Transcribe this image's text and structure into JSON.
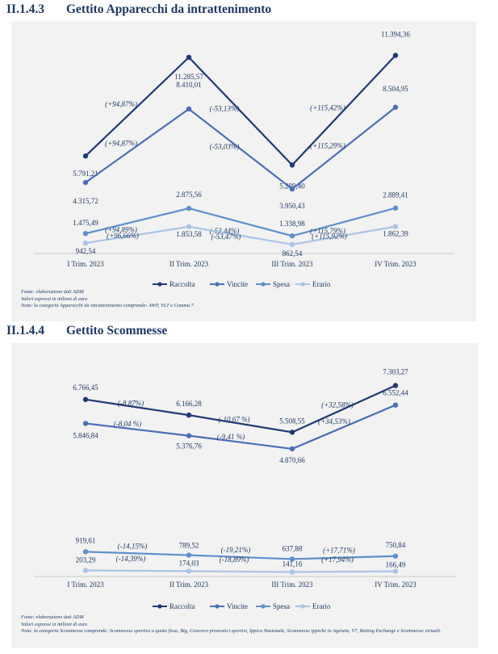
{
  "colors": {
    "raccolta": "#203a72",
    "vincite": "#4a6fb5",
    "spesa": "#5f8fcb",
    "erario": "#abc4e4",
    "text": "#1f3864",
    "panel": "#f2f2f2"
  },
  "chart_data": [
    {
      "type": "line",
      "section_number": "II.1.4.3",
      "title": "Gettito Apparecchi da intrattenimento",
      "categories": [
        "I Trim. 2023",
        "II Trim. 2023",
        "III Trim. 2023",
        "IV Trim. 2023"
      ],
      "ylim": [
        0,
        12500
      ],
      "legend_position": "bottom",
      "grid": false,
      "series": [
        {
          "name": "Raccolta",
          "color_key": "raccolta",
          "values": [
            5791.21,
            11285.57,
            5289.4,
            11394.36
          ],
          "labels": [
            "5.791,21",
            "11.285,57",
            "5.289,40",
            "11.394,36"
          ],
          "changes": [
            "(+94,87%)",
            "(-53,13%)",
            "(+115,42%)"
          ]
        },
        {
          "name": "Vincite",
          "color_key": "vincite",
          "values": [
            4315.72,
            8410.01,
            3950.43,
            8504.95
          ],
          "labels": [
            "4.315,72",
            "8.410,01",
            "3.950,43",
            "8.504,95"
          ],
          "changes": [
            "(+94,87%)",
            "(-53,03%)",
            "(+115,29%)"
          ]
        },
        {
          "name": "Spesa",
          "color_key": "spesa",
          "values": [
            1475.49,
            2875.56,
            1338.98,
            2889.41
          ],
          "labels": [
            "1.475,49",
            "2.875,56",
            "1.338,98",
            "2.889,41"
          ],
          "changes": [
            "(+94,89%)",
            "(-53,44%)",
            "(+115,79%)"
          ]
        },
        {
          "name": "Erario",
          "color_key": "erario",
          "values": [
            942.54,
            1853.58,
            862.54,
            1862.39
          ],
          "labels": [
            "942,54",
            "1.853,58",
            "862,54",
            "1.862,39"
          ],
          "changes": [
            "(+96,66%)",
            "(-53,47%)",
            "(+115,92%)"
          ]
        }
      ],
      "notes": [
        "Fonte: elaborazione dati ADM",
        "Valori espressi in milioni di euro",
        "Nota: la categoria Apparecchi da intrattenimento comprende: AWP, VLT e Comma 7"
      ]
    },
    {
      "type": "line",
      "section_number": "II.1.4.4",
      "title": "Gettito Scommesse",
      "categories": [
        "I Trim. 2023",
        "II Trim. 2023",
        "III Trim. 2023",
        "IV Trim. 2023"
      ],
      "ylim": [
        0,
        8000
      ],
      "legend_position": "bottom",
      "grid": false,
      "series": [
        {
          "name": "Raccolta",
          "color_key": "raccolta",
          "values": [
            6766.45,
            6166.28,
            5508.55,
            7303.27
          ],
          "labels": [
            "6.766,45",
            "6.166,28",
            "5.508,55",
            "7.303,27"
          ],
          "changes": [
            "(-8,87%)",
            "(-10,67 %)",
            "(+32,58%)"
          ]
        },
        {
          "name": "Vincite",
          "color_key": "vincite",
          "values": [
            5846.84,
            5376.76,
            4870.66,
            6552.44
          ],
          "labels": [
            "5.846,84",
            "5.376,76",
            "4.870,66",
            "6.552,44"
          ],
          "changes": [
            "(-8,04 %)",
            "(-9,41 %)",
            "(+34,53%)"
          ]
        },
        {
          "name": "Spesa",
          "color_key": "spesa",
          "values": [
            919.61,
            789.52,
            637.88,
            750.84
          ],
          "labels": [
            "919,61",
            "789,52",
            "637,88",
            "750,84"
          ],
          "changes": [
            "(-14,15%)",
            "(-19,21%)",
            "(+17,71%)"
          ]
        },
        {
          "name": "Erario",
          "color_key": "erario",
          "values": [
            203.29,
            174.03,
            141.16,
            166.49
          ],
          "labels": [
            "203,29",
            "174,03",
            "141,16",
            "166,49"
          ],
          "changes": [
            "(-14,39%)",
            "(-18,89%)",
            "(+17,94%)"
          ]
        }
      ],
      "notes": [
        "Fonte: elaborazione dati ADM",
        "Valori espressi in milioni di euro",
        "Nota: la categoria Scommesse comprende: Scommesse sportive a quota fissa, Big, Concorsi pronostici sportivi, Ippica Nazionale, Scommesse ippiche in Agenzia, V7, Betting Exchange e Scommesse virtuali."
      ]
    }
  ]
}
